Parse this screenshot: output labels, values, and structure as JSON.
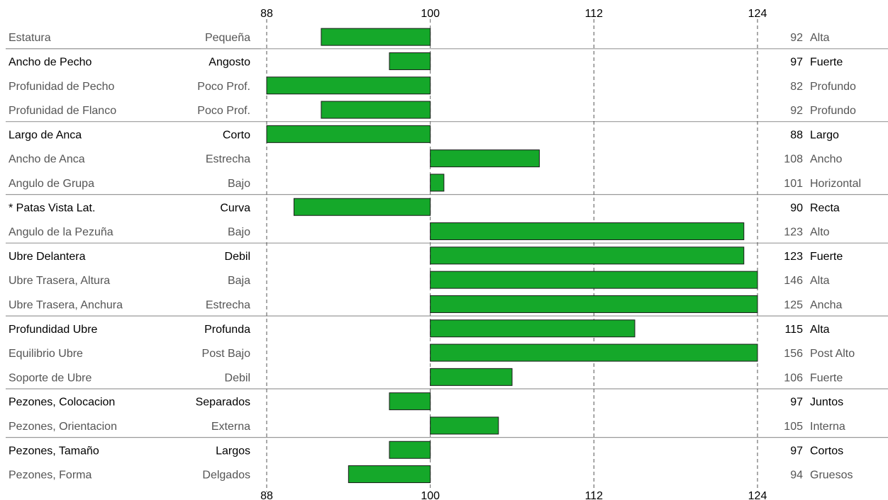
{
  "chart_data": {
    "type": "bar",
    "orientation": "horizontal",
    "xlim": [
      88,
      124
    ],
    "ticks": [
      "88",
      "100",
      "112",
      "124"
    ],
    "baseline": 100,
    "clip_max": 124,
    "bar_color": "#15a82a",
    "rows": [
      {
        "trait": "Estatura",
        "low": "Pequeña",
        "high": "Alta",
        "value": 92,
        "strong": false,
        "group_start": false
      },
      {
        "trait": "Ancho de Pecho",
        "low": "Angosto",
        "high": "Fuerte",
        "value": 97,
        "strong": true,
        "group_start": true
      },
      {
        "trait": "Profunidad de Pecho",
        "low": "Poco Prof.",
        "high": "Profundo",
        "value": 82,
        "strong": false,
        "group_start": false
      },
      {
        "trait": "Profunidad de Flanco",
        "low": "Poco Prof.",
        "high": "Profundo",
        "value": 92,
        "strong": false,
        "group_start": false
      },
      {
        "trait": "Largo de Anca",
        "low": "Corto",
        "high": "Largo",
        "value": 88,
        "strong": true,
        "group_start": true
      },
      {
        "trait": "Ancho de Anca",
        "low": "Estrecha",
        "high": "Ancho",
        "value": 108,
        "strong": false,
        "group_start": false
      },
      {
        "trait": "Angulo de Grupa",
        "low": "Bajo",
        "high": "Horizontal",
        "value": 101,
        "strong": false,
        "group_start": false
      },
      {
        "trait": "* Patas Vista Lat.",
        "low": "Curva",
        "high": "Recta",
        "value": 90,
        "strong": true,
        "group_start": true
      },
      {
        "trait": "Angulo de la Pezuña",
        "low": "Bajo",
        "high": "Alto",
        "value": 123,
        "strong": false,
        "group_start": false
      },
      {
        "trait": "Ubre Delantera",
        "low": "Debil",
        "high": "Fuerte",
        "value": 123,
        "strong": true,
        "group_start": true
      },
      {
        "trait": "Ubre Trasera, Altura",
        "low": "Baja",
        "high": "Alta",
        "value": 146,
        "strong": false,
        "group_start": false
      },
      {
        "trait": "Ubre Trasera, Anchura",
        "low": "Estrecha",
        "high": "Ancha",
        "value": 125,
        "strong": false,
        "group_start": false
      },
      {
        "trait": "Profundidad Ubre",
        "low": "Profunda",
        "high": "Alta",
        "value": 115,
        "strong": true,
        "group_start": true
      },
      {
        "trait": "Equilibrio Ubre",
        "low": "Post Bajo",
        "high": "Post Alto",
        "value": 156,
        "strong": false,
        "group_start": false
      },
      {
        "trait": "Soporte de Ubre",
        "low": "Debil",
        "high": "Fuerte",
        "value": 106,
        "strong": false,
        "group_start": false
      },
      {
        "trait": "Pezones, Colocacion",
        "low": "Separados",
        "high": "Juntos",
        "value": 97,
        "strong": true,
        "group_start": true
      },
      {
        "trait": "Pezones, Orientacion",
        "low": "Externa",
        "high": "Interna",
        "value": 105,
        "strong": false,
        "group_start": false
      },
      {
        "trait": "Pezones, Tamaño",
        "low": "Largos",
        "high": "Cortos",
        "value": 97,
        "strong": true,
        "group_start": true
      },
      {
        "trait": "Pezones, Forma",
        "low": "Delgados",
        "high": "Gruesos",
        "value": 94,
        "strong": false,
        "group_start": false
      }
    ]
  }
}
